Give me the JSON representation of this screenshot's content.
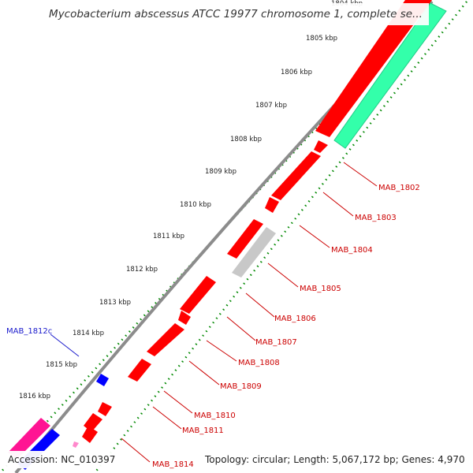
{
  "title": "Mycobacterium abscessus ATCC 19977 chromosome 1, complete se...",
  "accession": "Accession: NC_010397",
  "summary": "Topology: circular; Length: 5,067,172 bp; Genes: 4,970",
  "colors": {
    "backbone": "#8c8c8c",
    "gene_forward": "#ff0000",
    "gene_reverse": "#ff0000",
    "gene_rna": "#c8c8c8",
    "gene_other_blue": "#0000ff",
    "gene_pink": "#ff1493",
    "gene_teal": "#33ffaa",
    "tick": "#008800",
    "label_red": "#cc0000",
    "label_blue": "#1a1acc"
  },
  "kbp_labels": [
    "1804 kbp",
    "1805 kbp",
    "1806 kbp",
    "1807 kbp",
    "1808 kbp",
    "1809 kbp",
    "1810 kbp",
    "1811 kbp",
    "1812 kbp",
    "1813 kbp",
    "1814 kbp",
    "1815 kbp",
    "1816 kbp"
  ],
  "gene_labels": [
    {
      "text": "MAB_1802",
      "color": "red"
    },
    {
      "text": "MAB_1803",
      "color": "red"
    },
    {
      "text": "MAB_1804",
      "color": "red"
    },
    {
      "text": "MAB_1805",
      "color": "red"
    },
    {
      "text": "MAB_1806",
      "color": "red"
    },
    {
      "text": "MAB_1807",
      "color": "red"
    },
    {
      "text": "MAB_1808",
      "color": "red"
    },
    {
      "text": "MAB_1809",
      "color": "red"
    },
    {
      "text": "MAB_1810",
      "color": "red"
    },
    {
      "text": "MAB_1811",
      "color": "red"
    },
    {
      "text": "MAB_1814",
      "color": "red"
    },
    {
      "text": "MAB_1812c",
      "color": "blue"
    }
  ]
}
